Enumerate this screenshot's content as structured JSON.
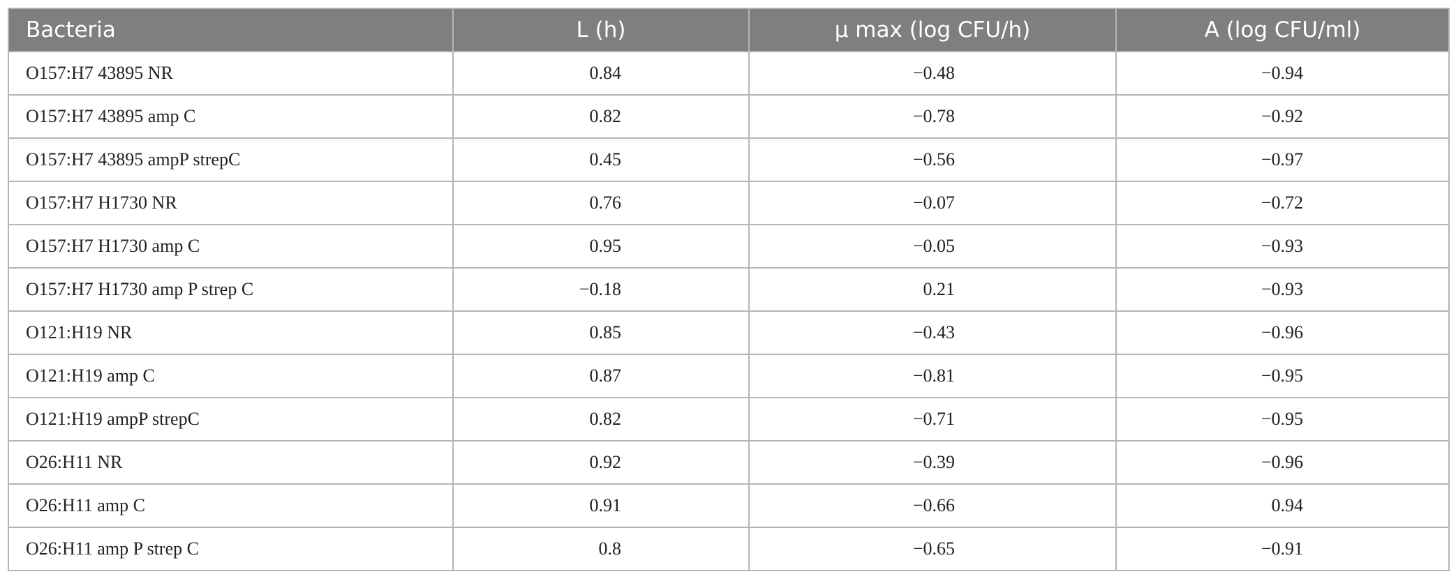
{
  "table": {
    "header": [
      "Bacteria",
      "L (h)",
      "μ max (log CFU/h)",
      "A (log CFU/ml)"
    ],
    "rows": [
      [
        "O157:H7 43895 NR",
        "0.84",
        "−0.48",
        "−0.94"
      ],
      [
        "O157:H7 43895 amp C",
        "0.82",
        "−0.78",
        "−0.92"
      ],
      [
        "O157:H7 43895 ampP strepC",
        "0.45",
        "−0.56",
        "−0.97"
      ],
      [
        "O157:H7 H1730 NR",
        "0.76",
        "−0.07",
        "−0.72"
      ],
      [
        "O157:H7 H1730 amp C",
        "0.95",
        "−0.05",
        "−0.93"
      ],
      [
        "O157:H7 H1730 amp P strep C",
        "−0.18",
        "0.21",
        "−0.93"
      ],
      [
        "O121:H19 NR",
        "0.85",
        "−0.43",
        "−0.96"
      ],
      [
        "O121:H19 amp C",
        "0.87",
        "−0.81",
        "−0.95"
      ],
      [
        "O121:H19 ampP strepC",
        "0.82",
        "−0.71",
        "−0.95"
      ],
      [
        "O26:H11 NR",
        "0.92",
        "−0.39",
        "−0.96"
      ],
      [
        "O26:H11 amp C",
        "0.91",
        "−0.66",
        "0.94"
      ],
      [
        "O26:H11 amp P strep C",
        "0.8",
        "−0.65",
        "−0.91"
      ]
    ]
  }
}
